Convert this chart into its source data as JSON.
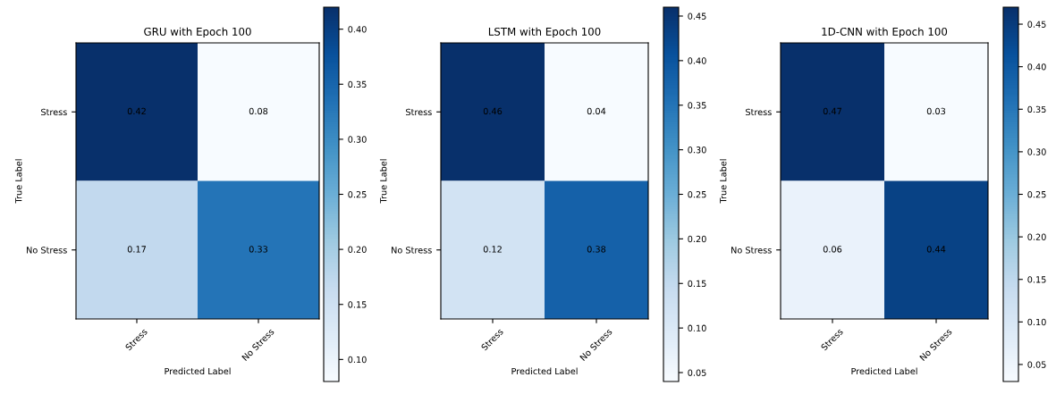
{
  "chart_data": [
    {
      "type": "heatmap",
      "data_labels": true,
      "title": "GRU with Epoch 100",
      "xlabel": "Predicted Label",
      "ylabel": "True Label",
      "categories": [
        "Stress",
        "No Stress"
      ],
      "y_categories": [
        "Stress",
        "No Stress"
      ],
      "cells": [
        [
          0.42,
          0.08
        ],
        [
          0.17,
          0.33
        ]
      ],
      "clim": [
        0.08,
        0.42
      ],
      "cticks": [
        {
          "value": 0.1,
          "label": "0.10"
        },
        {
          "value": 0.15,
          "label": "0.15"
        },
        {
          "value": 0.2,
          "label": "0.20"
        },
        {
          "value": 0.25,
          "label": "0.25"
        },
        {
          "value": 0.3,
          "label": "0.30"
        },
        {
          "value": 0.35,
          "label": "0.35"
        },
        {
          "value": 0.4,
          "label": "0.40"
        }
      ]
    },
    {
      "type": "heatmap",
      "data_labels": true,
      "title": "LSTM with Epoch 100",
      "xlabel": "Predicted Label",
      "ylabel": "True Label",
      "categories": [
        "Stress",
        "No Stress"
      ],
      "y_categories": [
        "Stress",
        "No Stress"
      ],
      "cells": [
        [
          0.46,
          0.04
        ],
        [
          0.12,
          0.38
        ]
      ],
      "clim": [
        0.04,
        0.46
      ],
      "cticks": [
        {
          "value": 0.05,
          "label": "0.05"
        },
        {
          "value": 0.1,
          "label": "0.10"
        },
        {
          "value": 0.15,
          "label": "0.15"
        },
        {
          "value": 0.2,
          "label": "0.20"
        },
        {
          "value": 0.25,
          "label": "0.25"
        },
        {
          "value": 0.3,
          "label": "0.30"
        },
        {
          "value": 0.35,
          "label": "0.35"
        },
        {
          "value": 0.4,
          "label": "0.40"
        },
        {
          "value": 0.45,
          "label": "0.45"
        }
      ]
    },
    {
      "type": "heatmap",
      "data_labels": true,
      "title": "1D-CNN with Epoch 100",
      "xlabel": "Predicted Label",
      "ylabel": "True Label",
      "categories": [
        "Stress",
        "No Stress"
      ],
      "y_categories": [
        "Stress",
        "No Stress"
      ],
      "cells": [
        [
          0.47,
          0.03
        ],
        [
          0.06,
          0.44
        ]
      ],
      "clim": [
        0.03,
        0.47
      ],
      "cticks": [
        {
          "value": 0.05,
          "label": "0.05"
        },
        {
          "value": 0.1,
          "label": "0.10"
        },
        {
          "value": 0.15,
          "label": "0.15"
        },
        {
          "value": 0.2,
          "label": "0.20"
        },
        {
          "value": 0.25,
          "label": "0.25"
        },
        {
          "value": 0.3,
          "label": "0.30"
        },
        {
          "value": 0.35,
          "label": "0.35"
        },
        {
          "value": 0.4,
          "label": "0.40"
        },
        {
          "value": 0.45,
          "label": "0.45"
        }
      ]
    }
  ]
}
